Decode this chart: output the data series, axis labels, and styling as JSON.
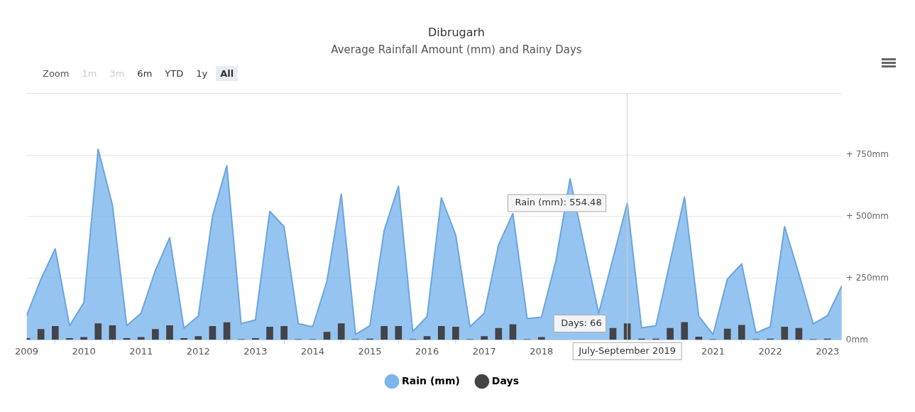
{
  "chart_data": {
    "type": "area",
    "title": "Dibrugarh",
    "subtitle": "Average Rainfall Amount (mm) and Rainy Days",
    "x": [
      "2009-01",
      "2009-04",
      "2009-07",
      "2009-10",
      "2010-01",
      "2010-04",
      "2010-07",
      "2010-10",
      "2011-01",
      "2011-04",
      "2011-07",
      "2011-10",
      "2012-01",
      "2012-04",
      "2012-07",
      "2012-10",
      "2013-01",
      "2013-04",
      "2013-07",
      "2013-10",
      "2014-01",
      "2014-04",
      "2014-07",
      "2014-10",
      "2015-01",
      "2015-04",
      "2015-07",
      "2015-10",
      "2016-01",
      "2016-04",
      "2016-07",
      "2016-10",
      "2017-01",
      "2017-04",
      "2017-07",
      "2017-10",
      "2018-01",
      "2018-04",
      "2018-07",
      "2018-10",
      "2019-01",
      "2019-04",
      "2019-07",
      "2019-10",
      "2020-01",
      "2020-04",
      "2020-07",
      "2020-10",
      "2021-01",
      "2021-04",
      "2021-07",
      "2021-10",
      "2022-01",
      "2022-04",
      "2022-07",
      "2022-10",
      "2023-01",
      "2023-04"
    ],
    "series": [
      {
        "name": "Rain (mm)",
        "color": "#7cb5ec",
        "values": [
          98,
          246,
          369,
          57,
          151,
          773,
          546,
          57,
          108,
          281,
          414,
          47,
          96,
          502,
          706,
          65,
          81,
          521,
          459,
          65,
          53,
          238,
          591,
          22,
          57,
          443,
          623,
          34,
          94,
          576,
          426,
          53,
          108,
          385,
          512,
          86,
          92,
          318,
          653,
          null,
          108,
          330,
          554.48,
          49,
          57,
          318,
          579,
          96,
          22,
          246,
          308,
          28,
          53,
          459,
          268,
          65,
          98,
          219
        ]
      },
      {
        "name": "Days",
        "type": "bar",
        "color": "#434348",
        "values": [
          6,
          43,
          55,
          6,
          10,
          66,
          58,
          6,
          10,
          43,
          58,
          6,
          14,
          55,
          70,
          2,
          6,
          52,
          55,
          2,
          2,
          31,
          66,
          2,
          4,
          55,
          55,
          2,
          14,
          55,
          52,
          2,
          14,
          47,
          62,
          2,
          10,
          null,
          null,
          null,
          null,
          47,
          66,
          4,
          4,
          47,
          71,
          12,
          2,
          44,
          59,
          2,
          4,
          52,
          47,
          2,
          4,
          null
        ]
      }
    ],
    "xlim": [
      "2009-01",
      "2023-04"
    ],
    "xticks": [
      "2009",
      "2010",
      "2011",
      "2012",
      "2013",
      "2014",
      "2015",
      "2016",
      "2017",
      "2018",
      "2021",
      "2022",
      "2023"
    ],
    "ylim": [
      0,
      1000
    ],
    "yticks": [
      {
        "value": 0,
        "label": "0mm"
      },
      {
        "value": 250,
        "label": "+ 250mm"
      },
      {
        "value": 500,
        "label": "+ 500mm"
      },
      {
        "value": 750,
        "label": "+ 750mm"
      },
      {
        "value": 1000,
        "label": null
      }
    ],
    "grid": "y",
    "legend": "bottom",
    "marker": "none",
    "ref_lines": [
      {
        "axis": "x",
        "value": "2019-07",
        "color": "#cccccc"
      }
    ],
    "annotations": [
      "Zoom",
      "1m",
      "3m",
      "6m",
      "YTD",
      "1y",
      "All",
      {
        "text": "Rain (mm): 554.48",
        "x": "2019-07",
        "y": 554.48
      },
      {
        "text": "Days: 66",
        "x": "2019-07",
        "y": 66
      },
      "July-September 2019"
    ]
  }
}
